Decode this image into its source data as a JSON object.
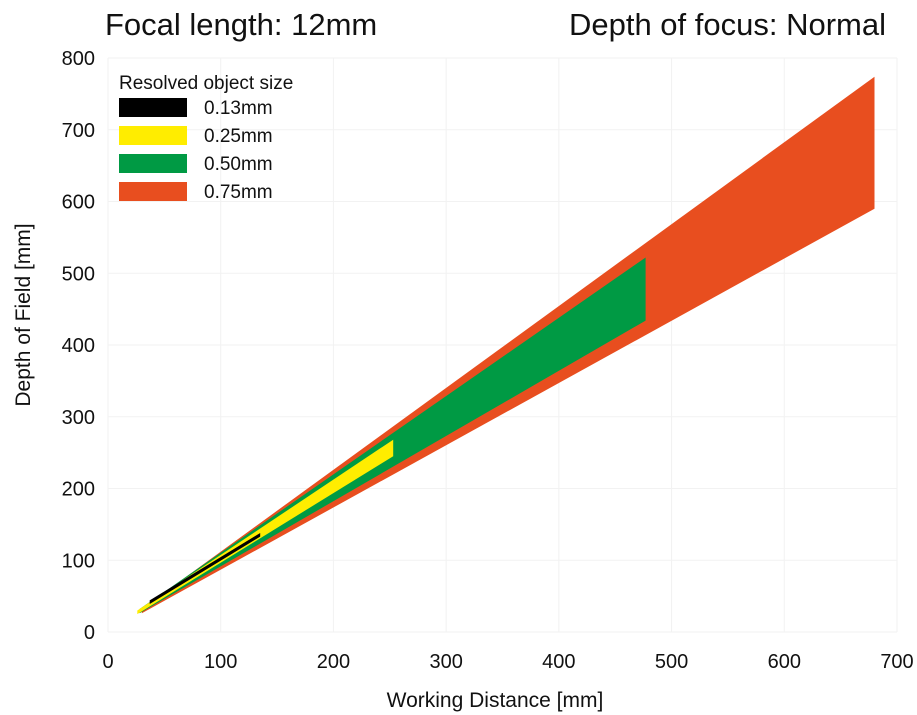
{
  "header": {
    "focal_length": "Focal length: 12mm",
    "depth_of_focus": "Depth of focus: Normal"
  },
  "chart_data": {
    "type": "area",
    "xlabel": "Working Distance [mm]",
    "ylabel": "Depth of Field [mm]",
    "xlim": [
      0,
      700
    ],
    "ylim": [
      0,
      800
    ],
    "xticks": [
      "0",
      "100",
      "200",
      "300",
      "400",
      "500",
      "600",
      "700"
    ],
    "yticks": [
      "0",
      "100",
      "200",
      "300",
      "400",
      "500",
      "600",
      "700",
      "800"
    ],
    "grid": true,
    "legend_title": "Resolved object size",
    "legend_position": "top-left",
    "series": [
      {
        "name": "0.75mm",
        "color": "#e84e1f",
        "x": [
          30,
          680
        ],
        "upper": [
          32,
          774
        ],
        "lower": [
          26,
          590
        ]
      },
      {
        "name": "0.50mm",
        "color": "#009a44",
        "x": [
          28,
          477
        ],
        "upper": [
          32,
          522
        ],
        "lower": [
          26,
          434
        ]
      },
      {
        "name": "0.25mm",
        "color": "#ffed00",
        "x": [
          26,
          253
        ],
        "upper": [
          30,
          268
        ],
        "lower": [
          25,
          245
        ]
      },
      {
        "name": "0.13mm",
        "color": "#000000",
        "x": [
          37,
          135
        ],
        "upper": [
          44,
          138
        ],
        "lower": [
          39,
          133
        ]
      }
    ]
  }
}
